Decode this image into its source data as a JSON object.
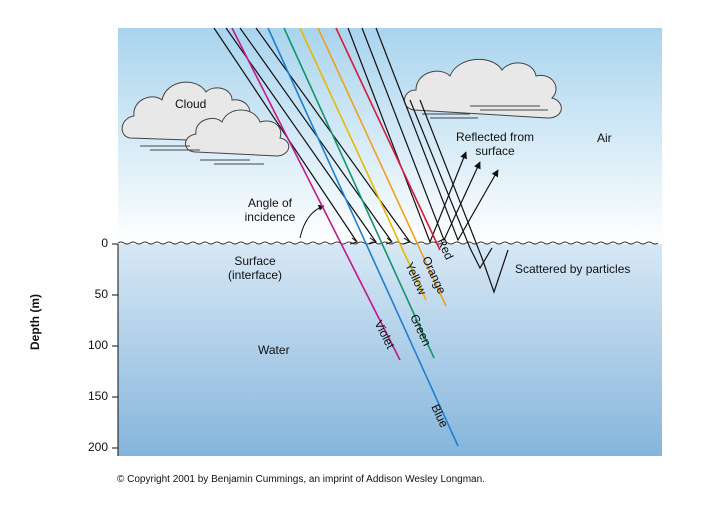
{
  "labels": {
    "cloud": "Cloud",
    "air": "Air",
    "reflected": [
      "Reflected from",
      "surface"
    ],
    "angle": [
      "Angle of",
      "incidence"
    ],
    "surface": [
      "Surface",
      "(interface)"
    ],
    "water": "Water",
    "scattered": "Scattered by particles",
    "copyright": "© Copyright 2001 by Benjamin Cummings, an imprint of Addison Wesley Longman."
  },
  "depth_axis": {
    "title": "Depth (m)",
    "ticks": [
      "0",
      "50",
      "100",
      "150",
      "200"
    ]
  },
  "rays": [
    {
      "name": "Violet",
      "color": "#c2188c"
    },
    {
      "name": "Blue",
      "color": "#1f7fd0"
    },
    {
      "name": "Green",
      "color": "#13966a"
    },
    {
      "name": "Yellow",
      "color": "#e9b800"
    },
    {
      "name": "Orange",
      "color": "#f0a020"
    },
    {
      "name": "Red",
      "color": "#d81b3a"
    }
  ],
  "colors": {
    "sky_top": "#a9d4ee",
    "sky_bottom": "#ffffff",
    "water_top": "#d7e8f5",
    "water_bottom": "#85b5dc"
  }
}
